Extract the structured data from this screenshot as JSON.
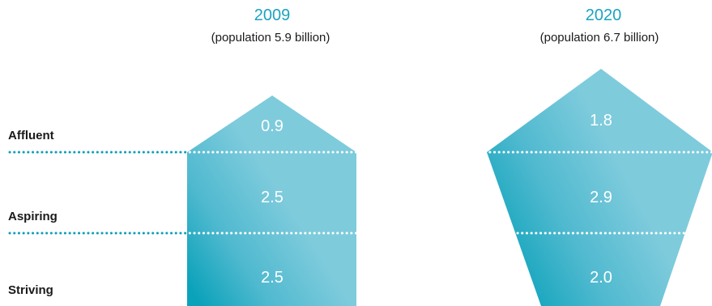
{
  "left_column": {
    "year": "2009",
    "population": "(population 5.9 billion)",
    "values": {
      "affluent": "0.9",
      "aspiring": "2.5",
      "striving": "2.5"
    }
  },
  "right_column": {
    "year": "2020",
    "population": "(population 6.7 billion)",
    "values": {
      "affluent": "1.8",
      "aspiring": "2.9",
      "striving": "2.0"
    }
  },
  "segments": {
    "affluent": "Affluent",
    "aspiring": "Aspiring",
    "striving": "Striving"
  },
  "colors": {
    "fill_light": "#7ecbdc",
    "fill_dark": "#0aa2ba",
    "year": "#1aa3c0",
    "dots": "#0e9fb8"
  }
}
